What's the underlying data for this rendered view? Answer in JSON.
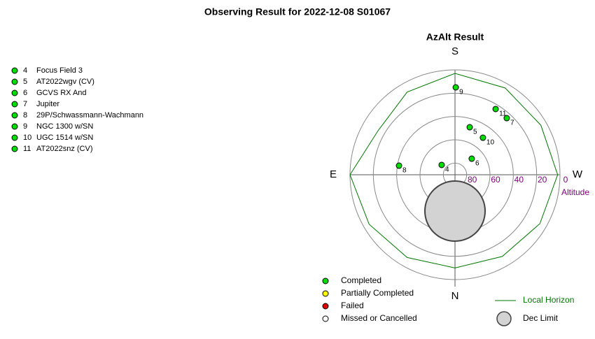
{
  "chart_data": {
    "type": "polar",
    "title": "Observing Result for 2022-12-08 S01067",
    "subtitle": "AzAlt Result",
    "directions": {
      "S": "S",
      "E": "E",
      "W": "W",
      "N": "N"
    },
    "r_label": "Altitude",
    "rlim": [
      90,
      0
    ],
    "rticks": [
      80,
      60,
      40,
      20,
      0
    ],
    "targets": {
      "ids": [
        "4",
        "5",
        "6",
        "7",
        "8",
        "9",
        "10",
        "11"
      ],
      "names": [
        "Focus Field 3",
        "AT2022wgv (CV)",
        "GCVS RX And",
        "Jupiter",
        "29P/Schwassmann-Wachmann",
        "NGC 1300 w/SN",
        "UGC 1514 w/SN",
        "AT2022snz (CV)"
      ],
      "az": [
        126.4,
        197.2,
        226.2,
        222.4,
        99.2,
        180.5,
        217,
        211.7
      ],
      "alt": [
        75.8,
        47.3,
        70.1,
        24.2,
        41.4,
        15,
        50.2,
        23.7
      ],
      "color": "#00dd00"
    },
    "horizon": {
      "name": "Local Horizon",
      "color": "#007700",
      "az": [
        0,
        30,
        60,
        90,
        120,
        150,
        180,
        210,
        240,
        270,
        300,
        330,
        360
      ],
      "alt": [
        10,
        8,
        5,
        0,
        14,
        8,
        3,
        4,
        5,
        2,
        6,
        9,
        10
      ]
    },
    "dec_limit": {
      "name": "Dec Limit",
      "color": "#d3d3d3",
      "az": 0,
      "alt": 58.8,
      "radius": 25.8
    },
    "status_legend": [
      {
        "name": "Completed",
        "color": "#00dd00"
      },
      {
        "name": "Partially Completed",
        "color": "#ffff00"
      },
      {
        "name": "Failed",
        "color": "#dd0000"
      },
      {
        "name": "Missed or Cancelled",
        "color": "#ffffff"
      }
    ]
  }
}
